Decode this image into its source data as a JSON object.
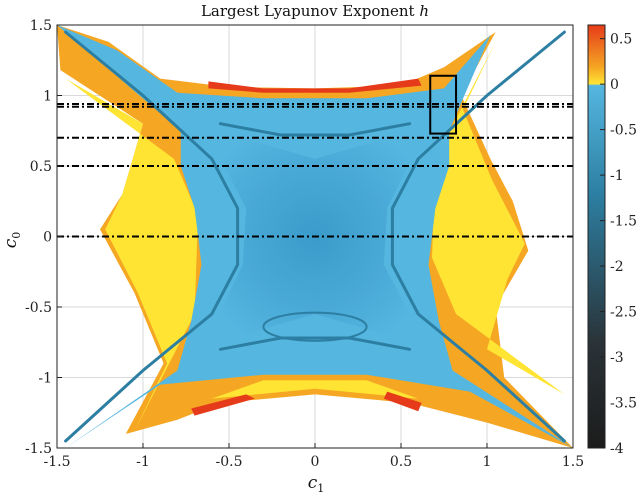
{
  "chart_data": {
    "type": "heatmap",
    "title": "Largest Lyapunov Exponent",
    "title_symbol": "h",
    "xlabel": "c",
    "xlabel_sub": "1",
    "ylabel": "c",
    "ylabel_sub": "0",
    "xlim": [
      -1.5,
      1.5
    ],
    "ylim": [
      -1.5,
      1.5
    ],
    "xticks": [
      "-1.5",
      "-1",
      "-0.5",
      "0",
      "0.5",
      "1",
      "1.5"
    ],
    "yticks": [
      "-1.5",
      "-1",
      "-0.5",
      "0",
      "0.5",
      "1",
      "1.5"
    ],
    "xtick_values": [
      -1.5,
      -1,
      -0.5,
      0,
      0.5,
      1,
      1.5
    ],
    "ytick_values": [
      -1.5,
      -1,
      -0.5,
      0,
      0.5,
      1,
      1.5
    ],
    "grid": true,
    "colorbar": {
      "range": [
        -4,
        0.65
      ],
      "ticks": [
        "0.5",
        "0",
        "-0.5",
        "-1",
        "-1.5",
        "-2",
        "-2.5",
        "-3",
        "-3.5",
        "-4"
      ],
      "tick_values": [
        0.5,
        0,
        -0.5,
        -1,
        -1.5,
        -2,
        -2.5,
        -3,
        -3.5,
        -4
      ],
      "colors": {
        "max": "#e63b1a",
        "positive": "#f5a623",
        "zero": "#ffe433",
        "negative_light": "#55b6e0",
        "mid": "#2c7fa2",
        "dark": "#2a3338",
        "min": "#1c1c1c"
      }
    },
    "horizontal_lines": {
      "style": "dash-dot",
      "color": "#000000",
      "c0_values": [
        0.94,
        0.92,
        0.7,
        0.5,
        0
      ]
    },
    "highlight_box": {
      "c1": [
        0.67,
        0.82
      ],
      "c0": [
        0.73,
        1.14
      ]
    }
  }
}
